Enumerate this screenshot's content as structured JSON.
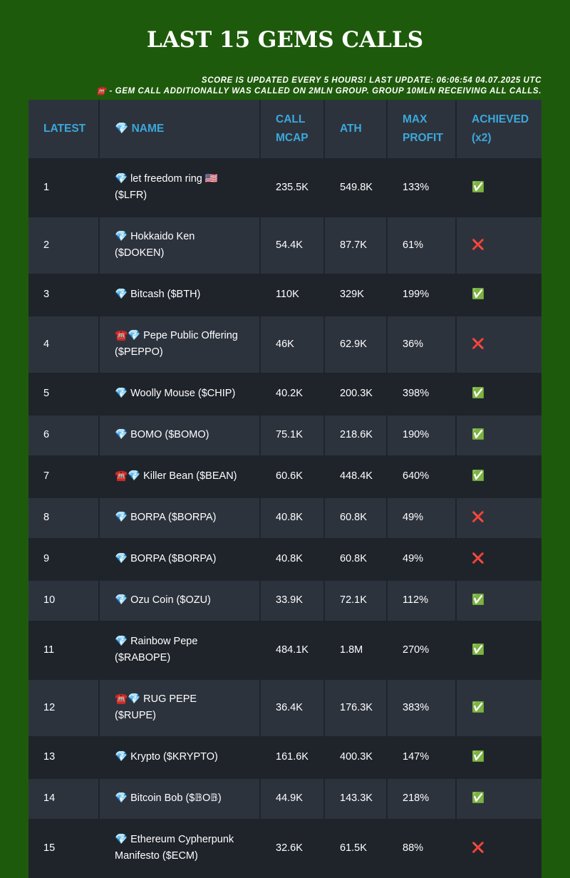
{
  "header": {
    "title": "LAST 15 GEMS CALLS",
    "notes": [
      "SCORE IS UPDATED EVERY 5 HOURS! LAST UPDATE: 06:06:54 04.07.2025 UTC",
      "☎️ - GEM CALL ADDITIONALLY WAS CALLED ON 2MLN GROUP. GROUP 10MLN RECEIVING ALL CALLS."
    ]
  },
  "table": {
    "columns": [
      "LATEST",
      "💎 NAME",
      "CALL MCAP",
      "ATH",
      "MAX PROFIT",
      "ACHIEVED (x2)"
    ],
    "rows": [
      [
        "1",
        "💎 let freedom ring 🇺🇸 ($LFR)",
        "235.5K",
        "549.8K",
        "133%",
        "✅"
      ],
      [
        "2",
        "💎 Hokkaido Ken ($DOKEN)",
        "54.4K",
        "87.7K",
        "61%",
        "❌"
      ],
      [
        "3",
        "💎 Bitcash ($BTH)",
        "110K",
        "329K",
        "199%",
        "✅"
      ],
      [
        "4",
        "☎️💎 Pepe Public Offering ($PEPPO)",
        "46K",
        "62.9K",
        "36%",
        "❌"
      ],
      [
        "5",
        "💎 Woolly Mouse ($CHIP)",
        "40.2K",
        "200.3K",
        "398%",
        "✅"
      ],
      [
        "6",
        "💎 BOMO ($BOMO)",
        "75.1K",
        "218.6K",
        "190%",
        "✅"
      ],
      [
        "7",
        "☎️💎 Killer Bean ($BEAN)",
        "60.6K",
        "448.4K",
        "640%",
        "✅"
      ],
      [
        "8",
        "💎 BORPA ($BORPA)",
        "40.8K",
        "60.8K",
        "49%",
        "❌"
      ],
      [
        "9",
        "💎 BORPA ($BORPA)",
        "40.8K",
        "60.8K",
        "49%",
        "❌"
      ],
      [
        "10",
        "💎 Ozu Coin ($OZU)",
        "33.9K",
        "72.1K",
        "112%",
        "✅"
      ],
      [
        "11",
        "💎 Rainbow Pepe ($RABOPE)",
        "484.1K",
        "1.8M",
        "270%",
        "✅"
      ],
      [
        "12",
        "☎️💎 RUG PEPE ($RUPE)",
        "36.4K",
        "176.3K",
        "383%",
        "✅"
      ],
      [
        "13",
        "💎 Krypto ($KRYPTO)",
        "161.6K",
        "400.3K",
        "147%",
        "✅"
      ],
      [
        "14",
        "💎 Bitcoin Bob ($𝔹O𝔹)",
        "44.9K",
        "143.3K",
        "218%",
        "✅"
      ],
      [
        "15",
        "💎 Ethereum Cypherpunk Manifesto ($ECM)",
        "32.6K",
        "61.5K",
        "88%",
        "❌"
      ]
    ]
  }
}
